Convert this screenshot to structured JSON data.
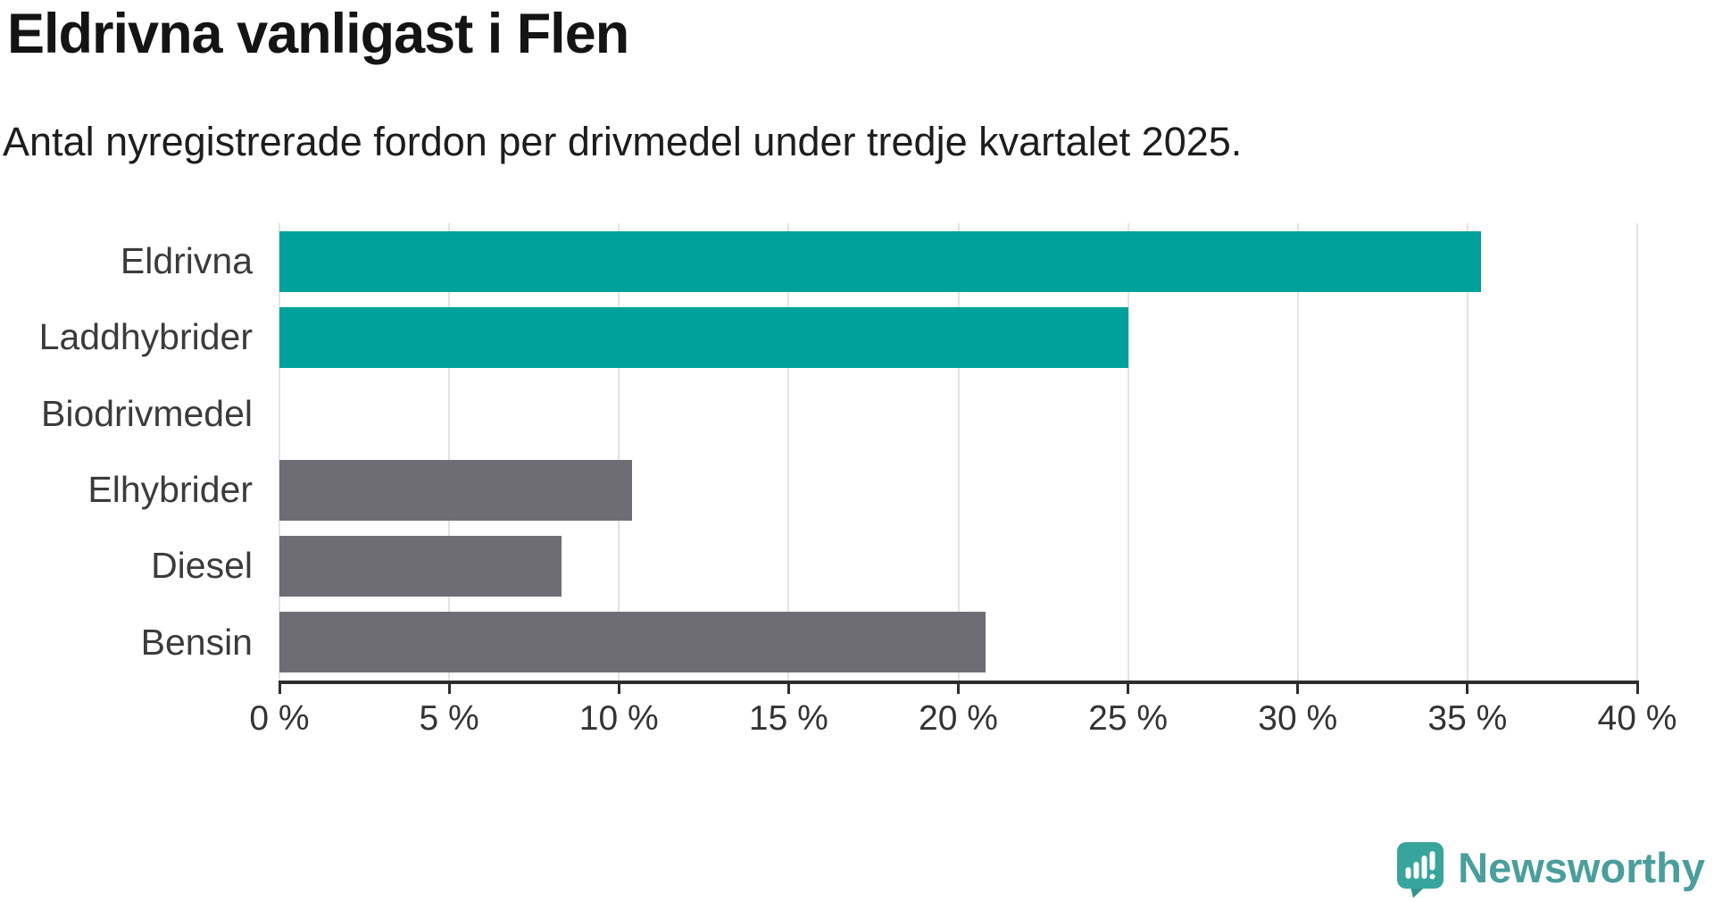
{
  "header": {
    "title": "Eldrivna vanligast i Flen",
    "subtitle": "Antal nyregistrerade fordon per drivmedel under tredje kvartalet 2025."
  },
  "chart_data": {
    "type": "bar",
    "orientation": "horizontal",
    "categories": [
      "Eldrivna",
      "Laddhybrider",
      "Biodrivmedel",
      "Elhybrider",
      "Diesel",
      "Bensin"
    ],
    "values": [
      35.4,
      25.0,
      0,
      10.4,
      8.3,
      20.8
    ],
    "bar_colors": [
      "#00a19a",
      "#00a19a",
      "#6d6d73",
      "#6d6d73",
      "#6d6d73",
      "#6d6d73"
    ],
    "title": "Eldrivna vanligast i Flen",
    "subtitle": "Antal nyregistrerade fordon per drivmedel under tredje kvartalet 2025.",
    "xlabel": "",
    "ylabel": "",
    "xlim": [
      0,
      40
    ],
    "x_tick_values": [
      0,
      5,
      10,
      15,
      20,
      25,
      30,
      35,
      40
    ],
    "x_tick_labels": [
      "0 %",
      "5 %",
      "10 %",
      "15 %",
      "20 %",
      "25 %",
      "30 %",
      "35 %",
      "40 %"
    ],
    "grid": true,
    "legend": false
  },
  "colors": {
    "accent_teal": "#00a19a",
    "neutral_gray": "#6d6d73",
    "gridline": "#e4e4e4",
    "axis": "#2e2e2e",
    "text_dark": "#141414",
    "label_gray": "#3b3b3b",
    "brand_teal": "#4a9e9b"
  },
  "branding": {
    "logo_text": "Newsworthy",
    "logo_icon": "newsworthy-chart-bubble-icon"
  }
}
